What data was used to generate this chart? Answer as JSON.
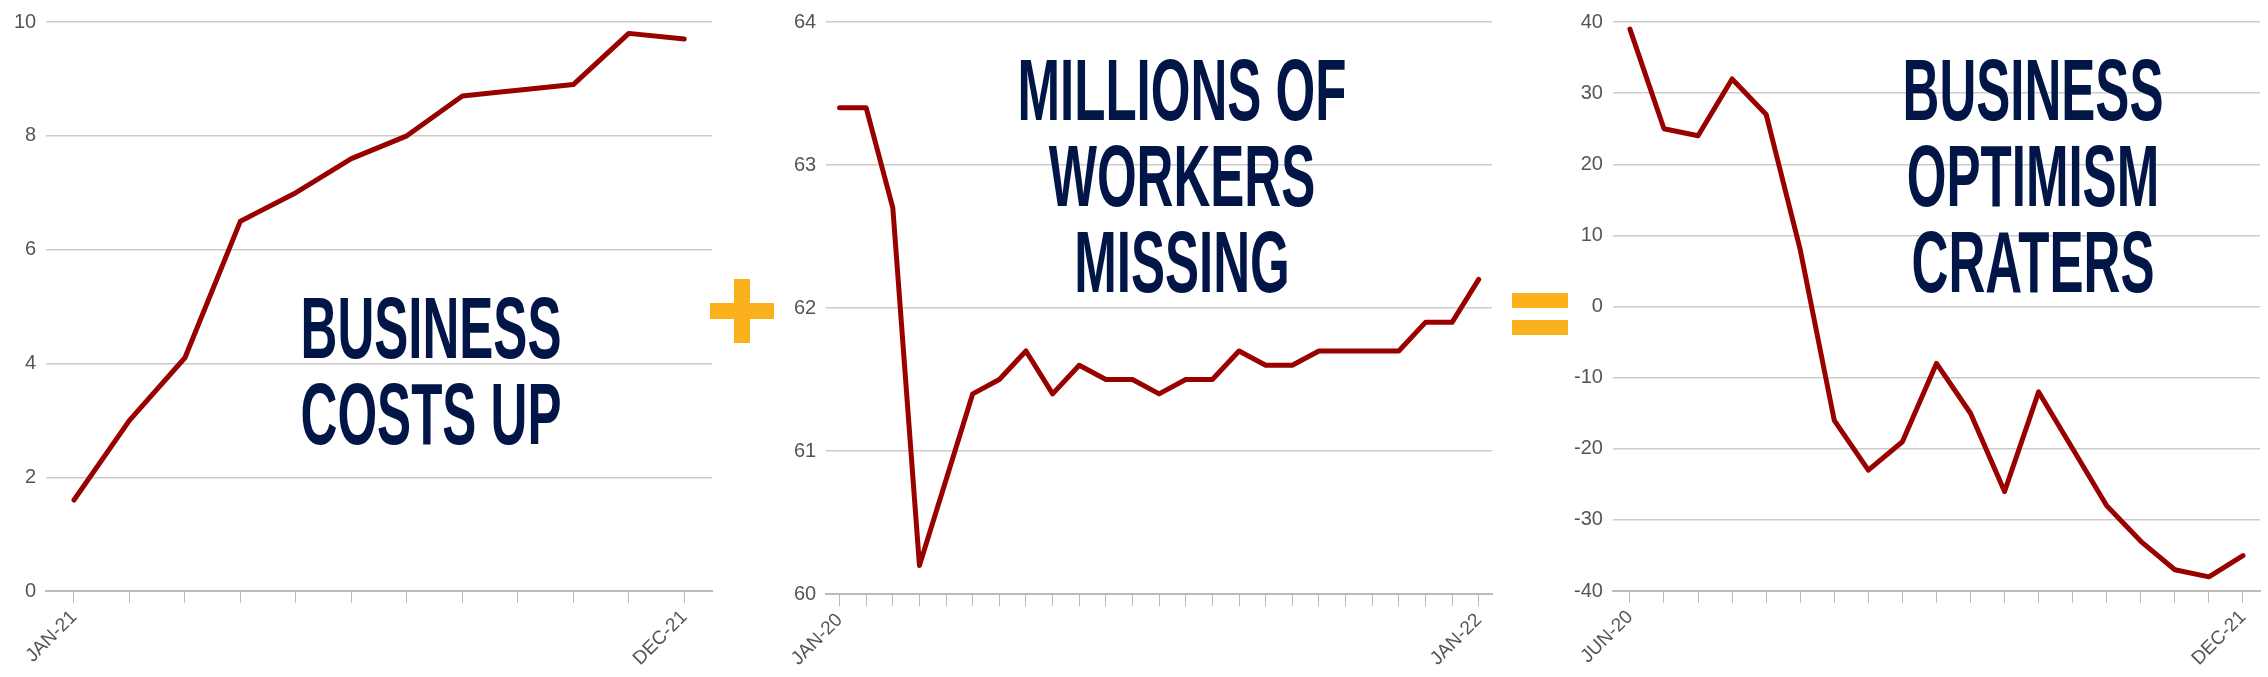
{
  "chart_data": [
    {
      "type": "line",
      "title": "BUSINESS COSTS UP",
      "categories": [
        "JAN-21",
        null,
        null,
        null,
        null,
        null,
        null,
        null,
        null,
        null,
        null,
        "DEC-21"
      ],
      "series": [
        {
          "color": "#990000",
          "values": [
            1.6,
            3.0,
            4.1,
            6.5,
            7.0,
            7.6,
            8.0,
            8.7,
            8.8,
            8.9,
            9.8,
            9.7
          ]
        }
      ],
      "ylim": [
        0,
        10
      ],
      "yticks": [
        0,
        2,
        4,
        6,
        8,
        10
      ],
      "grid": "y",
      "marker": "none"
    },
    {
      "type": "line",
      "title": "MILLIONS OF WORKERS MISSING",
      "categories": [
        "JAN-20",
        null,
        null,
        null,
        null,
        null,
        null,
        null,
        null,
        null,
        null,
        null,
        null,
        null,
        null,
        null,
        null,
        null,
        null,
        null,
        null,
        null,
        null,
        null,
        "JAN-22"
      ],
      "series": [
        {
          "color": "#990000",
          "values": [
            63.4,
            63.4,
            62.7,
            60.2,
            60.8,
            61.4,
            61.5,
            61.7,
            61.4,
            61.6,
            61.5,
            61.5,
            61.4,
            61.5,
            61.5,
            61.7,
            61.6,
            61.6,
            61.7,
            61.7,
            61.7,
            61.7,
            61.9,
            61.9,
            62.2
          ]
        }
      ],
      "ylim": [
        60,
        64
      ],
      "yticks": [
        60,
        61,
        62,
        63,
        64
      ],
      "grid": "y",
      "marker": "none"
    },
    {
      "type": "line",
      "title": "BUSINESS OPTIMISM CRATERS",
      "categories": [
        "JUN-20",
        null,
        null,
        null,
        null,
        null,
        null,
        null,
        null,
        null,
        null,
        null,
        null,
        null,
        null,
        null,
        null,
        null,
        "DEC-21"
      ],
      "series": [
        {
          "color": "#990000",
          "values": [
            39,
            25,
            24,
            32,
            27,
            8,
            -16,
            -23,
            -19,
            -8,
            -15,
            -26,
            -12,
            -20,
            -28,
            -33,
            -37,
            -38,
            -35
          ]
        }
      ],
      "ylim": [
        -40,
        40
      ],
      "yticks": [
        -40,
        -30,
        -20,
        -10,
        0,
        10,
        20,
        30,
        40
      ],
      "grid": "y",
      "marker": "none"
    }
  ]
}
